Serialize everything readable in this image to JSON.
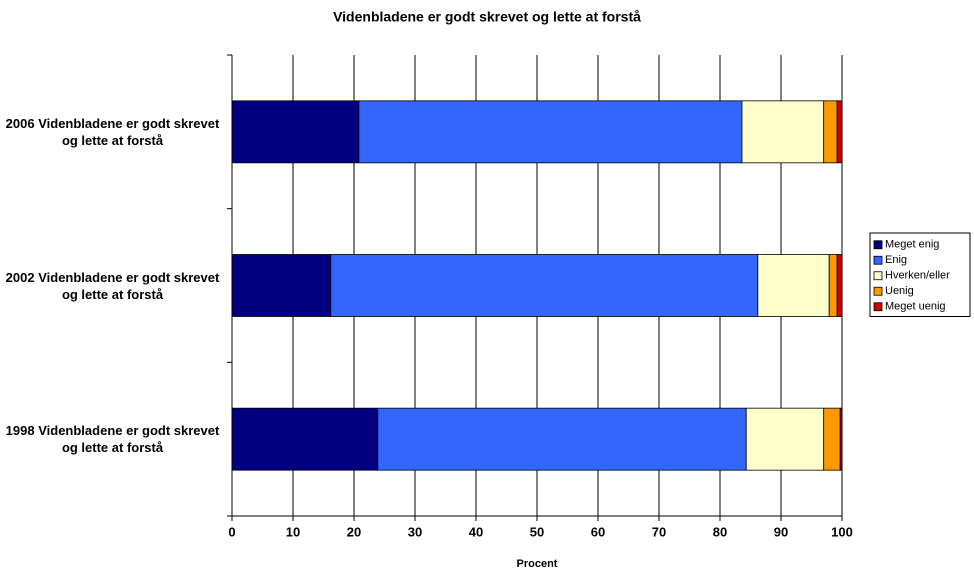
{
  "chart_data": {
    "type": "stacked-barh",
    "title": "Videnbladene er godt skrevet og lette at forstå",
    "x_label": "Procent",
    "categories": [
      "2006 Videnbladene er godt skrevet og lette at forstå",
      "2002 Videnbladene er godt skrevet og lette at forstå",
      "1998 Videnbladene er godt skrevet og lette at forstå"
    ],
    "series": [
      {
        "name": "Meget enig",
        "color": "#000080",
        "values": [
          20.8,
          16.2,
          23.9
        ]
      },
      {
        "name": "Enig",
        "color": "#3366FF",
        "values": [
          62.8,
          70.0,
          60.4
        ]
      },
      {
        "name": "Hverken/eller",
        "color": "#FFFFCC",
        "values": [
          13.4,
          11.7,
          12.7
        ]
      },
      {
        "name": "Uenig",
        "color": "#FF9900",
        "values": [
          2.2,
          1.3,
          2.7
        ]
      },
      {
        "name": "Meget uenig",
        "color": "#CC0000",
        "values": [
          0.8,
          0.8,
          0.3
        ]
      }
    ],
    "xlim": [
      0,
      100
    ],
    "xticks": [
      0,
      10,
      20,
      30,
      40,
      50,
      60,
      70,
      80,
      90,
      100
    ],
    "grid": true,
    "legend": "right"
  }
}
